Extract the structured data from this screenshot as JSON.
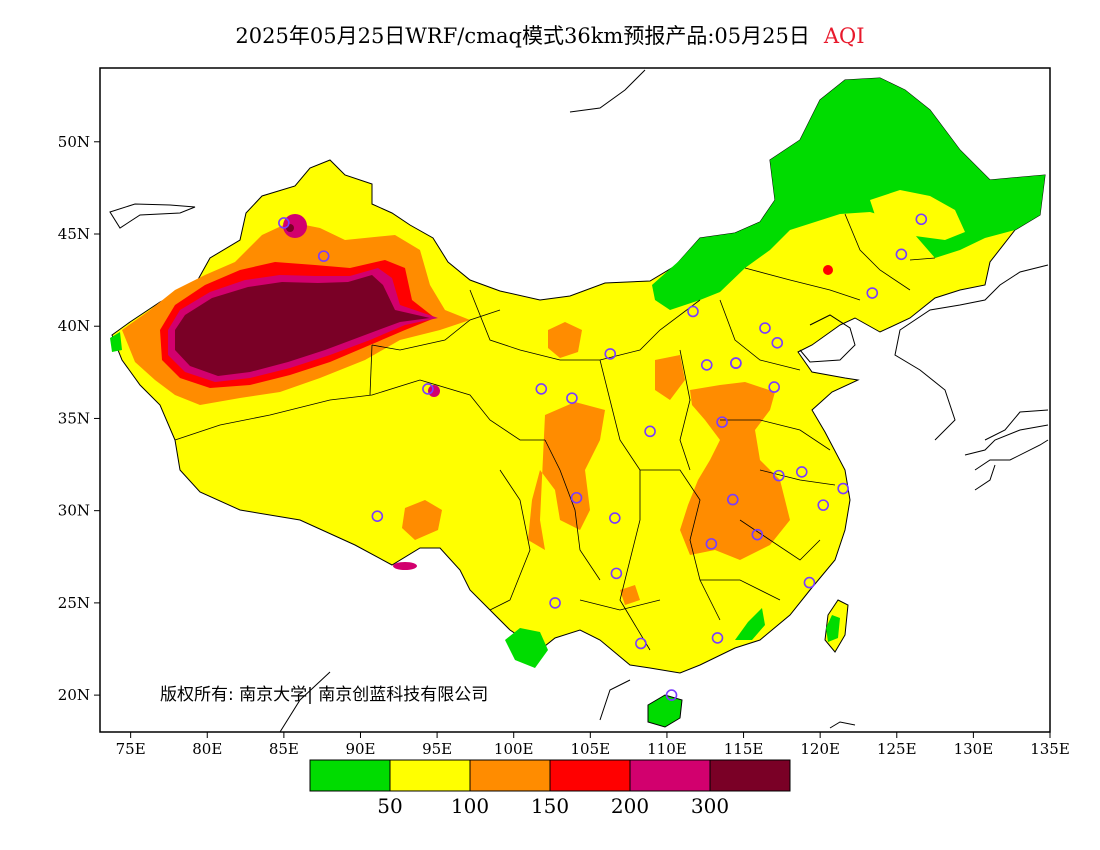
{
  "title": {
    "main": "2025年05月25日WRF/cmaq模式36km预报产品:05月25日",
    "product": "AQI",
    "product_color": "#e8192c"
  },
  "copyright": "版权所有: 南京大学| 南京创蓝科技有限公司",
  "map": {
    "lon_range": [
      73,
      135
    ],
    "lat_range": [
      18,
      54
    ],
    "lon_ticks": [
      {
        "value": 75,
        "label": "75E"
      },
      {
        "value": 80,
        "label": "80E"
      },
      {
        "value": 85,
        "label": "85E"
      },
      {
        "value": 90,
        "label": "90E"
      },
      {
        "value": 95,
        "label": "95E"
      },
      {
        "value": 100,
        "label": "100E"
      },
      {
        "value": 105,
        "label": "105E"
      },
      {
        "value": 110,
        "label": "110E"
      },
      {
        "value": 115,
        "label": "115E"
      },
      {
        "value": 120,
        "label": "120E"
      },
      {
        "value": 125,
        "label": "125E"
      },
      {
        "value": 130,
        "label": "130E"
      },
      {
        "value": 135,
        "label": "135E"
      }
    ],
    "lat_ticks": [
      {
        "value": 20,
        "label": "20N"
      },
      {
        "value": 25,
        "label": "25N"
      },
      {
        "value": 30,
        "label": "30N"
      },
      {
        "value": 35,
        "label": "35N"
      },
      {
        "value": 40,
        "label": "40N"
      },
      {
        "value": 45,
        "label": "45N"
      },
      {
        "value": 50,
        "label": "50N"
      }
    ],
    "colors": {
      "good": "#00dc00",
      "moderate": "#ffff00",
      "sensitive": "#ff8c00",
      "unhealthy": "#ff0000",
      "very_unhealthy": "#d2006e",
      "hazardous": "#7a0026"
    },
    "station_color": "#7a3cff"
  },
  "legend": {
    "colors": [
      "#00dc00",
      "#ffff00",
      "#ff8c00",
      "#ff0000",
      "#d2006e",
      "#7a0026"
    ],
    "labels": [
      "50",
      "100",
      "150",
      "200",
      "300"
    ]
  },
  "stations": [
    [
      87.6,
      43.8
    ],
    [
      85.0,
      45.6
    ],
    [
      91.1,
      29.7
    ],
    [
      94.4,
      36.6
    ],
    [
      101.8,
      36.6
    ],
    [
      103.8,
      36.1
    ],
    [
      106.3,
      38.5
    ],
    [
      111.7,
      40.8
    ],
    [
      104.1,
      30.7
    ],
    [
      106.6,
      29.6
    ],
    [
      106.7,
      26.6
    ],
    [
      102.7,
      25.0
    ],
    [
      108.9,
      34.3
    ],
    [
      112.6,
      37.9
    ],
    [
      114.5,
      38.0
    ],
    [
      116.4,
      39.9
    ],
    [
      117.2,
      39.1
    ],
    [
      117.0,
      36.7
    ],
    [
      113.6,
      34.8
    ],
    [
      114.3,
      30.6
    ],
    [
      112.9,
      28.2
    ],
    [
      115.9,
      28.7
    ],
    [
      117.3,
      31.9
    ],
    [
      118.8,
      32.1
    ],
    [
      120.2,
      30.3
    ],
    [
      121.5,
      31.2
    ],
    [
      119.3,
      26.1
    ],
    [
      113.3,
      23.1
    ],
    [
      108.3,
      22.8
    ],
    [
      110.3,
      20.0
    ],
    [
      123.4,
      41.8
    ],
    [
      125.3,
      43.9
    ],
    [
      126.6,
      45.8
    ],
    [
      114.5,
      38.0
    ]
  ]
}
